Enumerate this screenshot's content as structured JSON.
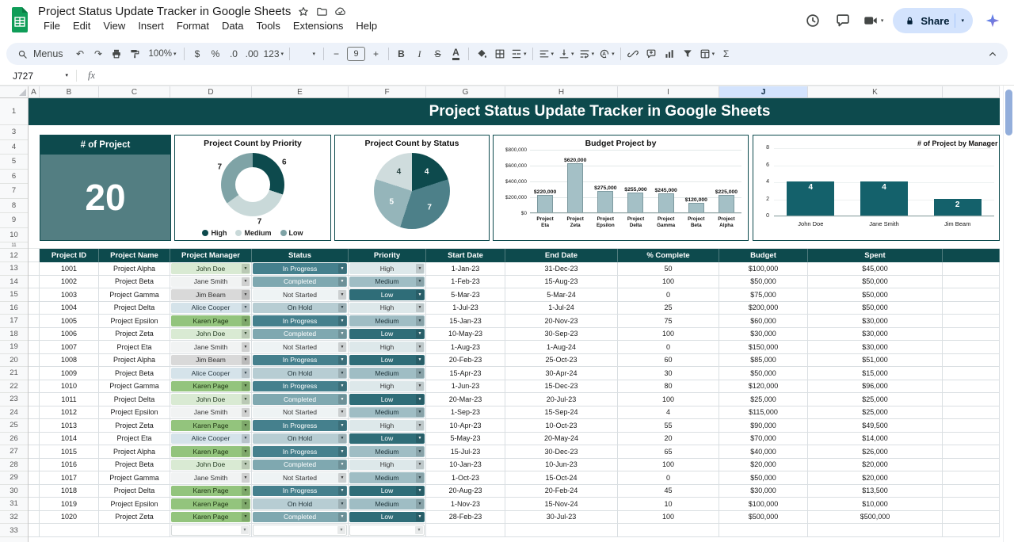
{
  "app": {
    "doc_title": "Project Status Update Tracker in Google Sheets",
    "menu_items": [
      "File",
      "Edit",
      "View",
      "Insert",
      "Format",
      "Data",
      "Tools",
      "Extensions",
      "Help"
    ],
    "share_label": "Share"
  },
  "toolbar": {
    "items": [
      {
        "name": "toolbar-search-menus",
        "type": "menus",
        "label": "Menus"
      },
      {
        "name": "undo-icon",
        "type": "glyph",
        "g": "↶"
      },
      {
        "name": "redo-icon",
        "type": "glyph",
        "g": "↷"
      },
      {
        "name": "print-icon",
        "type": "svg",
        "k": "print"
      },
      {
        "name": "paint-format-icon",
        "type": "svg",
        "k": "paint"
      },
      {
        "name": "zoom-select",
        "type": "dd",
        "label": "100%"
      },
      {
        "name": "divider"
      },
      {
        "name": "currency-format-icon",
        "type": "glyph",
        "g": "$"
      },
      {
        "name": "percent-format-icon",
        "type": "glyph",
        "g": "%"
      },
      {
        "name": "decrease-decimal-icon",
        "type": "glyph",
        "g": ".0"
      },
      {
        "name": "increase-decimal-icon",
        "type": "glyph",
        "g": ".00"
      },
      {
        "name": "number-format-menu",
        "type": "glyph",
        "g": "123",
        "dd": true
      },
      {
        "name": "divider"
      },
      {
        "name": "font-family-select",
        "type": "dd",
        "label": ""
      },
      {
        "name": "divider"
      },
      {
        "name": "decrease-font-size-icon",
        "type": "glyph",
        "g": "−"
      },
      {
        "name": "font-size-input",
        "type": "box",
        "label": "9"
      },
      {
        "name": "increase-font-size-icon",
        "type": "glyph",
        "g": "+"
      },
      {
        "name": "divider"
      },
      {
        "name": "bold-icon",
        "type": "glyph",
        "g": "B",
        "cls": "b"
      },
      {
        "name": "italic-icon",
        "type": "glyph",
        "g": "I",
        "cls": "i"
      },
      {
        "name": "strikethrough-icon",
        "type": "glyph",
        "g": "S",
        "cls": "s"
      },
      {
        "name": "text-color-icon",
        "type": "glyph",
        "g": "A",
        "cls": "u"
      },
      {
        "name": "divider"
      },
      {
        "name": "fill-color-icon",
        "type": "svg",
        "k": "fill"
      },
      {
        "name": "borders-icon",
        "type": "svg",
        "k": "borders"
      },
      {
        "name": "merge-cells-icon",
        "type": "svg",
        "k": "merge",
        "dd": true
      },
      {
        "name": "divider"
      },
      {
        "name": "horizontal-align-icon",
        "type": "svg",
        "k": "alignl",
        "dd": true
      },
      {
        "name": "vertical-align-icon",
        "type": "svg",
        "k": "valign",
        "dd": true
      },
      {
        "name": "text-wrap-icon",
        "type": "svg",
        "k": "wrap",
        "dd": true
      },
      {
        "name": "text-rotation-icon",
        "type": "svg",
        "k": "rotate",
        "dd": true
      },
      {
        "name": "divider"
      },
      {
        "name": "insert-link-icon",
        "type": "svg",
        "k": "link"
      },
      {
        "name": "insert-comment-icon",
        "type": "svg",
        "k": "comment"
      },
      {
        "name": "insert-chart-icon",
        "type": "svg",
        "k": "chart"
      },
      {
        "name": "create-filter-icon",
        "type": "svg",
        "k": "filter"
      },
      {
        "name": "table-views-icon",
        "type": "svg",
        "k": "views",
        "dd": true
      },
      {
        "name": "functions-icon",
        "type": "glyph",
        "g": "Σ"
      }
    ]
  },
  "formula_bar": {
    "cell_reference": "J727",
    "fx_label": "fx"
  },
  "grid": {
    "columns": [
      "A",
      "B",
      "C",
      "D",
      "E",
      "F",
      "G",
      "H",
      "I",
      "J",
      "K",
      ""
    ],
    "active_column": "J",
    "row_numbers": [
      "1",
      "3",
      "4",
      "5",
      "6",
      "7",
      "8",
      "9",
      "10",
      "11",
      "12",
      "13",
      "14",
      "15",
      "16",
      "17",
      "18",
      "19",
      "20",
      "21",
      "22",
      "23",
      "24",
      "25",
      "26",
      "27",
      "28",
      "29",
      "30",
      "31",
      "32",
      "33"
    ]
  },
  "banner_title": "Project Status Update Tracker in Google Sheets",
  "dashboard": {
    "count_card": {
      "title": "# of Project",
      "value": "20"
    },
    "priority_chart": {
      "type": "donut",
      "title": "Project Count by Priority",
      "segments": [
        {
          "label": "High",
          "value": 6,
          "color": "#0d4a4d"
        },
        {
          "label": "Medium",
          "value": 7,
          "color": "#c9d9d9"
        },
        {
          "label": "Low",
          "value": 7,
          "color": "#7fa3a6"
        }
      ]
    },
    "status_chart": {
      "type": "pie",
      "title": "Project Count by  Status",
      "segments": [
        {
          "label": "Not Started",
          "value": 4,
          "color": "#0d4a4d"
        },
        {
          "label": "In Progress",
          "value": 7,
          "color": "#4d8089"
        },
        {
          "label": "Completed",
          "value": 5,
          "color": "#95b5ba"
        },
        {
          "label": "On Hold",
          "value": 4,
          "color": "#cfdcdd"
        }
      ]
    },
    "budget_chart": {
      "type": "bar",
      "title": "Budget Project by",
      "categories": [
        "Project Eta",
        "Project Zeta",
        "Project Epsilon",
        "Project Delta",
        "Project Gamma",
        "Project Beta",
        "Project Alpha"
      ],
      "values": [
        220000,
        620000,
        275000,
        255000,
        245000,
        120000,
        225000
      ],
      "value_labels": [
        "$220,000",
        "$620,000",
        "$275,000",
        "$255,000",
        "$245,000",
        "$120,000",
        "$225,000"
      ],
      "y_ticks": [
        "$800,000",
        "$600,000",
        "$400,000",
        "$200,000",
        "$0"
      ],
      "y_max": 800000,
      "bar_color": "#a4c0c6"
    },
    "manager_chart": {
      "type": "bar",
      "title": "# of Project by Manager",
      "categories": [
        "John Doe",
        "Jane Smith",
        "Jim Beam"
      ],
      "values": [
        4,
        4,
        2
      ],
      "y_ticks": [
        "8",
        "6",
        "4",
        "2",
        "0"
      ],
      "y_max": 8,
      "bar_color": "#14616b"
    }
  },
  "table": {
    "headers": [
      "Project ID",
      "Project Name",
      "Project Manager",
      "Status",
      "Priority",
      "Start Date",
      "End Date",
      "% Complete",
      "Budget",
      "Spent"
    ],
    "rows": [
      [
        "1001",
        "Project Alpha",
        "John Doe",
        "In Progress",
        "High",
        "1-Jan-23",
        "31-Dec-23",
        "50",
        "$100,000",
        "$45,000"
      ],
      [
        "1002",
        "Project Beta",
        "Jane Smith",
        "Completed",
        "Medium",
        "1-Feb-23",
        "15-Aug-23",
        "100",
        "$50,000",
        "$50,000"
      ],
      [
        "1003",
        "Project Gamma",
        "Jim Beam",
        "Not Started",
        "Low",
        "5-Mar-23",
        "5-Mar-24",
        "0",
        "$75,000",
        "$50,000"
      ],
      [
        "1004",
        "Project Delta",
        "Alice Cooper",
        "On Hold",
        "High",
        "1-Jul-23",
        "1-Jul-24",
        "25",
        "$200,000",
        "$50,000"
      ],
      [
        "1005",
        "Project Epsilon",
        "Karen Page",
        "In Progress",
        "Medium",
        "15-Jan-23",
        "20-Nov-23",
        "75",
        "$60,000",
        "$30,000"
      ],
      [
        "1006",
        "Project Zeta",
        "John Doe",
        "Completed",
        "Low",
        "10-May-23",
        "30-Sep-23",
        "100",
        "$30,000",
        "$30,000"
      ],
      [
        "1007",
        "Project Eta",
        "Jane Smith",
        "Not Started",
        "High",
        "1-Aug-23",
        "1-Aug-24",
        "0",
        "$150,000",
        "$30,000"
      ],
      [
        "1008",
        "Project Alpha",
        "Jim Beam",
        "In Progress",
        "Low",
        "20-Feb-23",
        "25-Oct-23",
        "60",
        "$85,000",
        "$51,000"
      ],
      [
        "1009",
        "Project Beta",
        "Alice Cooper",
        "On Hold",
        "Medium",
        "15-Apr-23",
        "30-Apr-24",
        "30",
        "$50,000",
        "$15,000"
      ],
      [
        "1010",
        "Project Gamma",
        "Karen Page",
        "In Progress",
        "High",
        "1-Jun-23",
        "15-Dec-23",
        "80",
        "$120,000",
        "$96,000"
      ],
      [
        "1011",
        "Project Delta",
        "John Doe",
        "Completed",
        "Low",
        "20-Mar-23",
        "20-Jul-23",
        "100",
        "$25,000",
        "$25,000"
      ],
      [
        "1012",
        "Project Epsilon",
        "Jane Smith",
        "Not Started",
        "Medium",
        "1-Sep-23",
        "15-Sep-24",
        "4",
        "$115,000",
        "$25,000"
      ],
      [
        "1013",
        "Project Zeta",
        "Karen Page",
        "In Progress",
        "High",
        "10-Apr-23",
        "10-Oct-23",
        "55",
        "$90,000",
        "$49,500"
      ],
      [
        "1014",
        "Project Eta",
        "Alice Cooper",
        "On Hold",
        "Low",
        "5-May-23",
        "20-May-24",
        "20",
        "$70,000",
        "$14,000"
      ],
      [
        "1015",
        "Project Alpha",
        "Karen Page",
        "In Progress",
        "Medium",
        "15-Jul-23",
        "30-Dec-23",
        "65",
        "$40,000",
        "$26,000"
      ],
      [
        "1016",
        "Project Beta",
        "John Doe",
        "Completed",
        "High",
        "10-Jan-23",
        "10-Jun-23",
        "100",
        "$20,000",
        "$20,000"
      ],
      [
        "1017",
        "Project Gamma",
        "Jane Smith",
        "Not Started",
        "Medium",
        "1-Oct-23",
        "15-Oct-24",
        "0",
        "$50,000",
        "$20,000"
      ],
      [
        "1018",
        "Project Delta",
        "Karen Page",
        "In Progress",
        "Low",
        "20-Aug-23",
        "20-Feb-24",
        "45",
        "$30,000",
        "$13,500"
      ],
      [
        "1019",
        "Project Epsilon",
        "Karen Page",
        "On Hold",
        "Medium",
        "1-Nov-23",
        "15-Nov-24",
        "10",
        "$100,000",
        "$10,000"
      ],
      [
        "1020",
        "Project Zeta",
        "Karen Page",
        "Completed",
        "Low",
        "28-Feb-23",
        "30-Jul-23",
        "100",
        "$500,000",
        "$500,000"
      ]
    ],
    "manager_styles": {
      "John Doe": {
        "bg": "#d9ead3",
        "fg": "#243b22"
      },
      "Jane Smith": {
        "bg": "#f1f3f3",
        "fg": "#333333"
      },
      "Jim Beam": {
        "bg": "#d9d9d9",
        "fg": "#333333"
      },
      "Alice Cooper": {
        "bg": "#d5e3ea",
        "fg": "#2a3b44"
      },
      "Karen Page": {
        "bg": "#93c47d",
        "fg": "#1e3313"
      }
    },
    "status_styles": {
      "In Progress": {
        "bg": "#45808d",
        "fg": "#ffffff"
      },
      "Completed": {
        "bg": "#7fa8b0",
        "fg": "#ffffff"
      },
      "Not Started": {
        "bg": "#eef3f4",
        "fg": "#333333"
      },
      "On Hold": {
        "bg": "#b7cdd3",
        "fg": "#22343a"
      }
    },
    "priority_styles": {
      "High": {
        "bg": "#dde8ea",
        "fg": "#333333"
      },
      "Medium": {
        "bg": "#9fbdc4",
        "fg": "#1d3339"
      },
      "Low": {
        "bg": "#2f6d78",
        "fg": "#ffffff"
      }
    }
  }
}
